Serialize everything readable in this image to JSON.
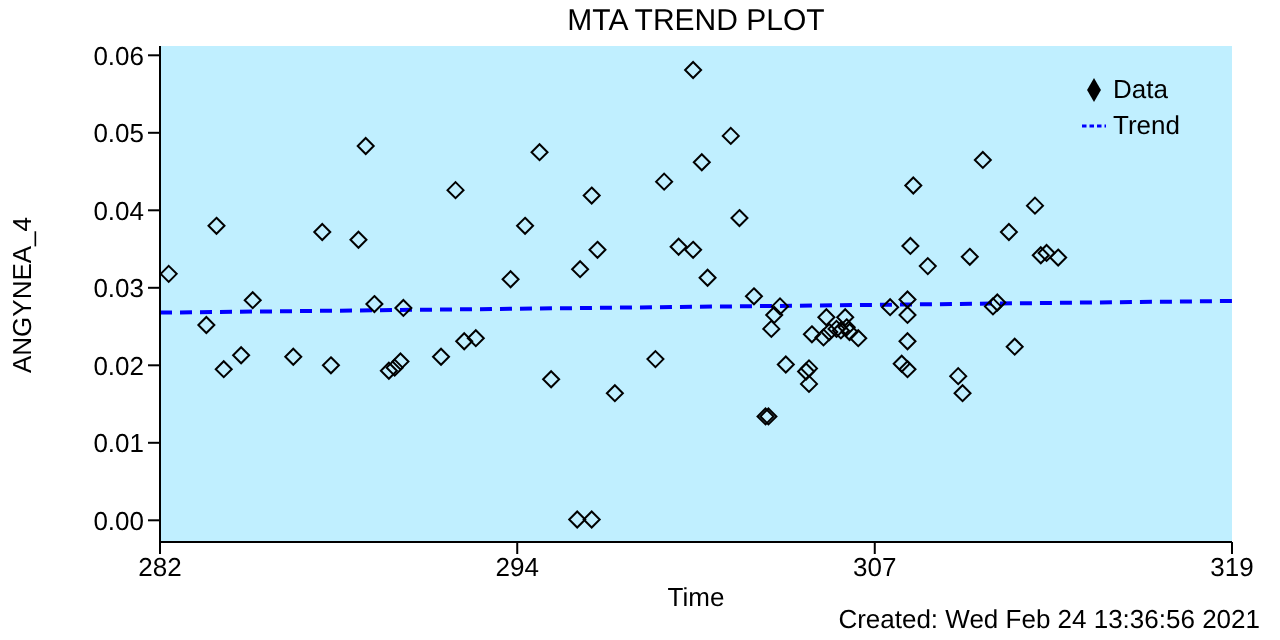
{
  "chart_data": {
    "type": "scatter",
    "title": "MTA TREND PLOT",
    "xlabel": "Time",
    "ylabel": "ANGYNEA_4",
    "annotations": [
      "Created: Wed Feb 24 13:36:56 2021"
    ],
    "xlim": [
      282,
      319
    ],
    "xticks": [
      282,
      {
        "value": 294.33,
        "label": "294"
      },
      {
        "value": 306.67,
        "label": "307"
      },
      319
    ],
    "ylim": [
      -0.0028,
      0.0612
    ],
    "yticks": [
      {
        "value": 0,
        "label": "0.00"
      },
      {
        "value": 0.01,
        "label": "0.01"
      },
      {
        "value": 0.02,
        "label": "0.02"
      },
      {
        "value": 0.03,
        "label": "0.03"
      },
      {
        "value": 0.04,
        "label": "0.04"
      },
      {
        "value": 0.05,
        "label": "0.05"
      },
      {
        "value": 0.06,
        "label": "0.06"
      }
    ],
    "grid": false,
    "legend": "top right",
    "series": [
      {
        "name": "Data",
        "color": "#000000",
        "marker": "diamond",
        "x": [
          282.3,
          283.6,
          283.95,
          284.2,
          284.8,
          285.2,
          286.6,
          287.6,
          287.9,
          288.85,
          289.1,
          289.4,
          289.9,
          290.1,
          290.3,
          290.4,
          291.7,
          292.2,
          292.5,
          292.9,
          294.1,
          294.6,
          295.1,
          295.5,
          296.4,
          296.9,
          296.5,
          296.9,
          297.1,
          297.7,
          299.1,
          299.4,
          299.9,
          300.4,
          300.4,
          300.7,
          300.9,
          301.7,
          302.0,
          302.5,
          302.9,
          303.0,
          303.1,
          303.2,
          303.4,
          303.6,
          304.3,
          304.4,
          304.4,
          304.5,
          304.9,
          305.1,
          305.35,
          305.0,
          305.5,
          305.7,
          305.8,
          306.1,
          305.65,
          307.2,
          307.8,
          307.8,
          307.9,
          308.0,
          307.8,
          307.6,
          307.8,
          308.5,
          309.55,
          309.7,
          309.95,
          310.4,
          310.75,
          310.9,
          311.3,
          311.5,
          312.2,
          312.4,
          312.6,
          313.0
        ],
        "values": [
          0.0318,
          0.0252,
          0.038,
          0.0195,
          0.0213,
          0.0284,
          0.0211,
          0.0372,
          0.02,
          0.0362,
          0.0483,
          0.0279,
          0.0193,
          0.0197,
          0.0205,
          0.0274,
          0.0211,
          0.0426,
          0.0231,
          0.0235,
          0.0311,
          0.038,
          0.0475,
          0.0182,
          0.0001,
          0.0001,
          0.0324,
          0.0419,
          0.0349,
          0.0164,
          0.0208,
          0.0437,
          0.0353,
          0.0349,
          0.0581,
          0.0462,
          0.0313,
          0.0496,
          0.039,
          0.0289,
          0.0134,
          0.0134,
          0.0247,
          0.0265,
          0.0276,
          0.0201,
          0.0192,
          0.0196,
          0.0176,
          0.024,
          0.0236,
          0.0243,
          0.0247,
          0.0262,
          0.0245,
          0.0249,
          0.0243,
          0.0235,
          0.0262,
          0.0275,
          0.0285,
          0.0265,
          0.0354,
          0.0432,
          0.0231,
          0.0202,
          0.0195,
          0.0328,
          0.0186,
          0.0164,
          0.034,
          0.0465,
          0.0276,
          0.0281,
          0.0372,
          0.0224,
          0.0406,
          0.0342,
          0.0345,
          0.0339
        ]
      },
      {
        "name": "Trend",
        "type": "line",
        "color": "#0000ff",
        "line_style": "dashed",
        "marker": "none",
        "x": [
          282,
          319
        ],
        "values": [
          0.0268,
          0.0283
        ]
      }
    ]
  }
}
